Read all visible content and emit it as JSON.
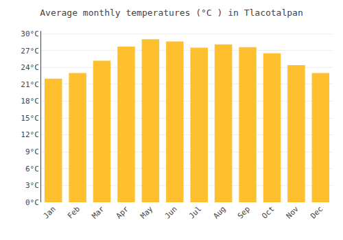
{
  "chart_data": {
    "type": "bar",
    "title": "Average monthly temperatures (°C ) in Tlacotalpan",
    "categories": [
      "Jan",
      "Feb",
      "Mar",
      "Apr",
      "May",
      "Jun",
      "Jul",
      "Aug",
      "Sep",
      "Oct",
      "Nov",
      "Dec"
    ],
    "values": [
      22.0,
      23.0,
      25.2,
      27.7,
      29.0,
      28.6,
      27.5,
      28.1,
      27.6,
      26.5,
      24.4,
      23.0
    ],
    "color": "#FFC030",
    "ylim": [
      0,
      30.5
    ],
    "yticks": [
      {
        "value": 0,
        "label": "0°C"
      },
      {
        "value": 3,
        "label": "3°C"
      },
      {
        "value": 6,
        "label": "6°C"
      },
      {
        "value": 9,
        "label": "9°C"
      },
      {
        "value": 12,
        "label": "12°C"
      },
      {
        "value": 15,
        "label": "15°C"
      },
      {
        "value": 18,
        "label": "18°C"
      },
      {
        "value": 21,
        "label": "21°C"
      },
      {
        "value": 24,
        "label": "24°C"
      },
      {
        "value": 27,
        "label": "27°C"
      },
      {
        "value": 30,
        "label": "30°C"
      }
    ],
    "grid": true
  }
}
